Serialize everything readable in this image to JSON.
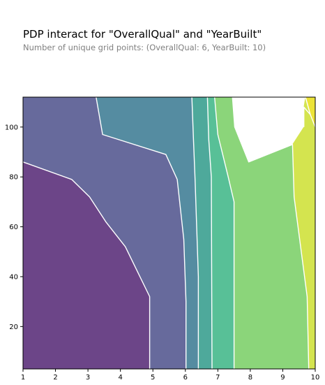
{
  "chart_data": {
    "type": "contour",
    "title": "PDP interact for \"OverallQual\" and \"YearBuilt\"",
    "subtitle": "Number of unique grid points: (OverallQual: 6, YearBuilt: 10)",
    "xlabel": "",
    "ylabel": "",
    "xlim": [
      1,
      10
    ],
    "ylim": [
      3,
      112
    ],
    "x_ticks": [
      1,
      2,
      3,
      4,
      5,
      6,
      7,
      8,
      9,
      10
    ],
    "y_ticks": [
      20,
      40,
      60,
      80,
      100
    ],
    "grid": false,
    "colormap": "viridis",
    "levels": [
      {
        "color": "#6c4588",
        "points": [
          [
            1,
            3
          ],
          [
            4.9,
            3
          ],
          [
            4.9,
            32
          ],
          [
            4.15,
            52
          ],
          [
            3.55,
            62
          ],
          [
            3.05,
            72
          ],
          [
            2.5,
            79
          ],
          [
            1,
            86
          ]
        ]
      },
      {
        "color": "#676a9c",
        "points": [
          [
            4.9,
            3
          ],
          [
            6.02,
            3
          ],
          [
            6.02,
            30
          ],
          [
            5.95,
            55
          ],
          [
            5.75,
            79
          ],
          [
            5.4,
            89
          ],
          [
            3.45,
            97
          ],
          [
            3.25,
            112
          ],
          [
            1,
            112
          ],
          [
            1,
            86
          ],
          [
            2.5,
            79
          ],
          [
            3.05,
            72
          ],
          [
            3.55,
            62
          ],
          [
            4.15,
            52
          ],
          [
            4.9,
            32
          ]
        ]
      },
      {
        "color": "#558ca1",
        "points": [
          [
            6.02,
            3
          ],
          [
            6.4,
            3
          ],
          [
            6.4,
            40
          ],
          [
            6.3,
            79
          ],
          [
            6.25,
            95
          ],
          [
            6.2,
            112
          ],
          [
            3.25,
            112
          ],
          [
            3.45,
            97
          ],
          [
            5.4,
            89
          ],
          [
            5.75,
            79
          ],
          [
            5.95,
            55
          ],
          [
            6.02,
            30
          ]
        ]
      },
      {
        "color": "#4ea99b",
        "points": [
          [
            6.4,
            3
          ],
          [
            6.82,
            3
          ],
          [
            6.8,
            80
          ],
          [
            6.72,
            95
          ],
          [
            6.68,
            112
          ],
          [
            6.2,
            112
          ],
          [
            6.25,
            95
          ],
          [
            6.3,
            79
          ],
          [
            6.4,
            40
          ]
        ]
      },
      {
        "color": "#58c097",
        "points": [
          [
            6.82,
            3
          ],
          [
            7.5,
            3
          ],
          [
            7.5,
            70
          ],
          [
            7.32,
            80
          ],
          [
            7.0,
            97
          ],
          [
            6.9,
            112
          ],
          [
            6.68,
            112
          ],
          [
            6.72,
            95
          ],
          [
            6.8,
            80
          ]
        ]
      },
      {
        "color": "#8bd57a",
        "points": [
          [
            7.5,
            3
          ],
          [
            9.8,
            3
          ],
          [
            9.75,
            32
          ],
          [
            9.35,
            72
          ],
          [
            9.3,
            93
          ],
          [
            7.95,
            86
          ],
          [
            7.52,
            100
          ],
          [
            7.45,
            112
          ],
          [
            6.9,
            112
          ],
          [
            7.0,
            97
          ],
          [
            7.32,
            80
          ],
          [
            7.5,
            70
          ]
        ]
      },
      {
        "color": "#d4e44f",
        "points": [
          [
            9.8,
            3
          ],
          [
            10,
            3
          ],
          [
            10,
            112
          ],
          [
            9.7,
            112
          ],
          [
            9.65,
            108
          ],
          [
            9.65,
            100
          ],
          [
            9.3,
            93
          ],
          [
            9.35,
            72
          ],
          [
            9.75,
            32
          ]
        ]
      },
      {
        "color": "#ece338",
        "points": [
          [
            9.7,
            112
          ],
          [
            10,
            112
          ],
          [
            10,
            100
          ],
          [
            9.85,
            105
          ]
        ]
      }
    ],
    "contour_lines": [
      [
        [
          4.9,
          3
        ],
        [
          4.9,
          32
        ],
        [
          4.15,
          52
        ],
        [
          3.55,
          62
        ],
        [
          3.05,
          72
        ],
        [
          2.5,
          79
        ],
        [
          1,
          86
        ]
      ],
      [
        [
          6.02,
          3
        ],
        [
          6.02,
          30
        ],
        [
          5.95,
          55
        ],
        [
          5.75,
          79
        ],
        [
          5.4,
          89
        ],
        [
          3.45,
          97
        ],
        [
          3.25,
          112
        ]
      ],
      [
        [
          6.4,
          3
        ],
        [
          6.4,
          40
        ],
        [
          6.3,
          79
        ],
        [
          6.25,
          95
        ],
        [
          6.2,
          112
        ]
      ],
      [
        [
          6.82,
          3
        ],
        [
          6.8,
          80
        ],
        [
          6.72,
          95
        ],
        [
          6.68,
          112
        ]
      ],
      [
        [
          7.5,
          3
        ],
        [
          7.5,
          70
        ],
        [
          7.32,
          80
        ],
        [
          7.0,
          97
        ],
        [
          6.9,
          112
        ]
      ],
      [
        [
          9.8,
          3
        ],
        [
          9.75,
          32
        ],
        [
          9.35,
          72
        ],
        [
          9.3,
          93
        ],
        [
          7.95,
          86
        ],
        [
          7.52,
          100
        ],
        [
          7.45,
          112
        ]
      ],
      [
        [
          9.7,
          112
        ],
        [
          9.85,
          105
        ],
        [
          10,
          100
        ]
      ],
      [
        [
          9.65,
          100
        ],
        [
          9.65,
          108
        ],
        [
          9.85,
          105
        ]
      ]
    ]
  }
}
